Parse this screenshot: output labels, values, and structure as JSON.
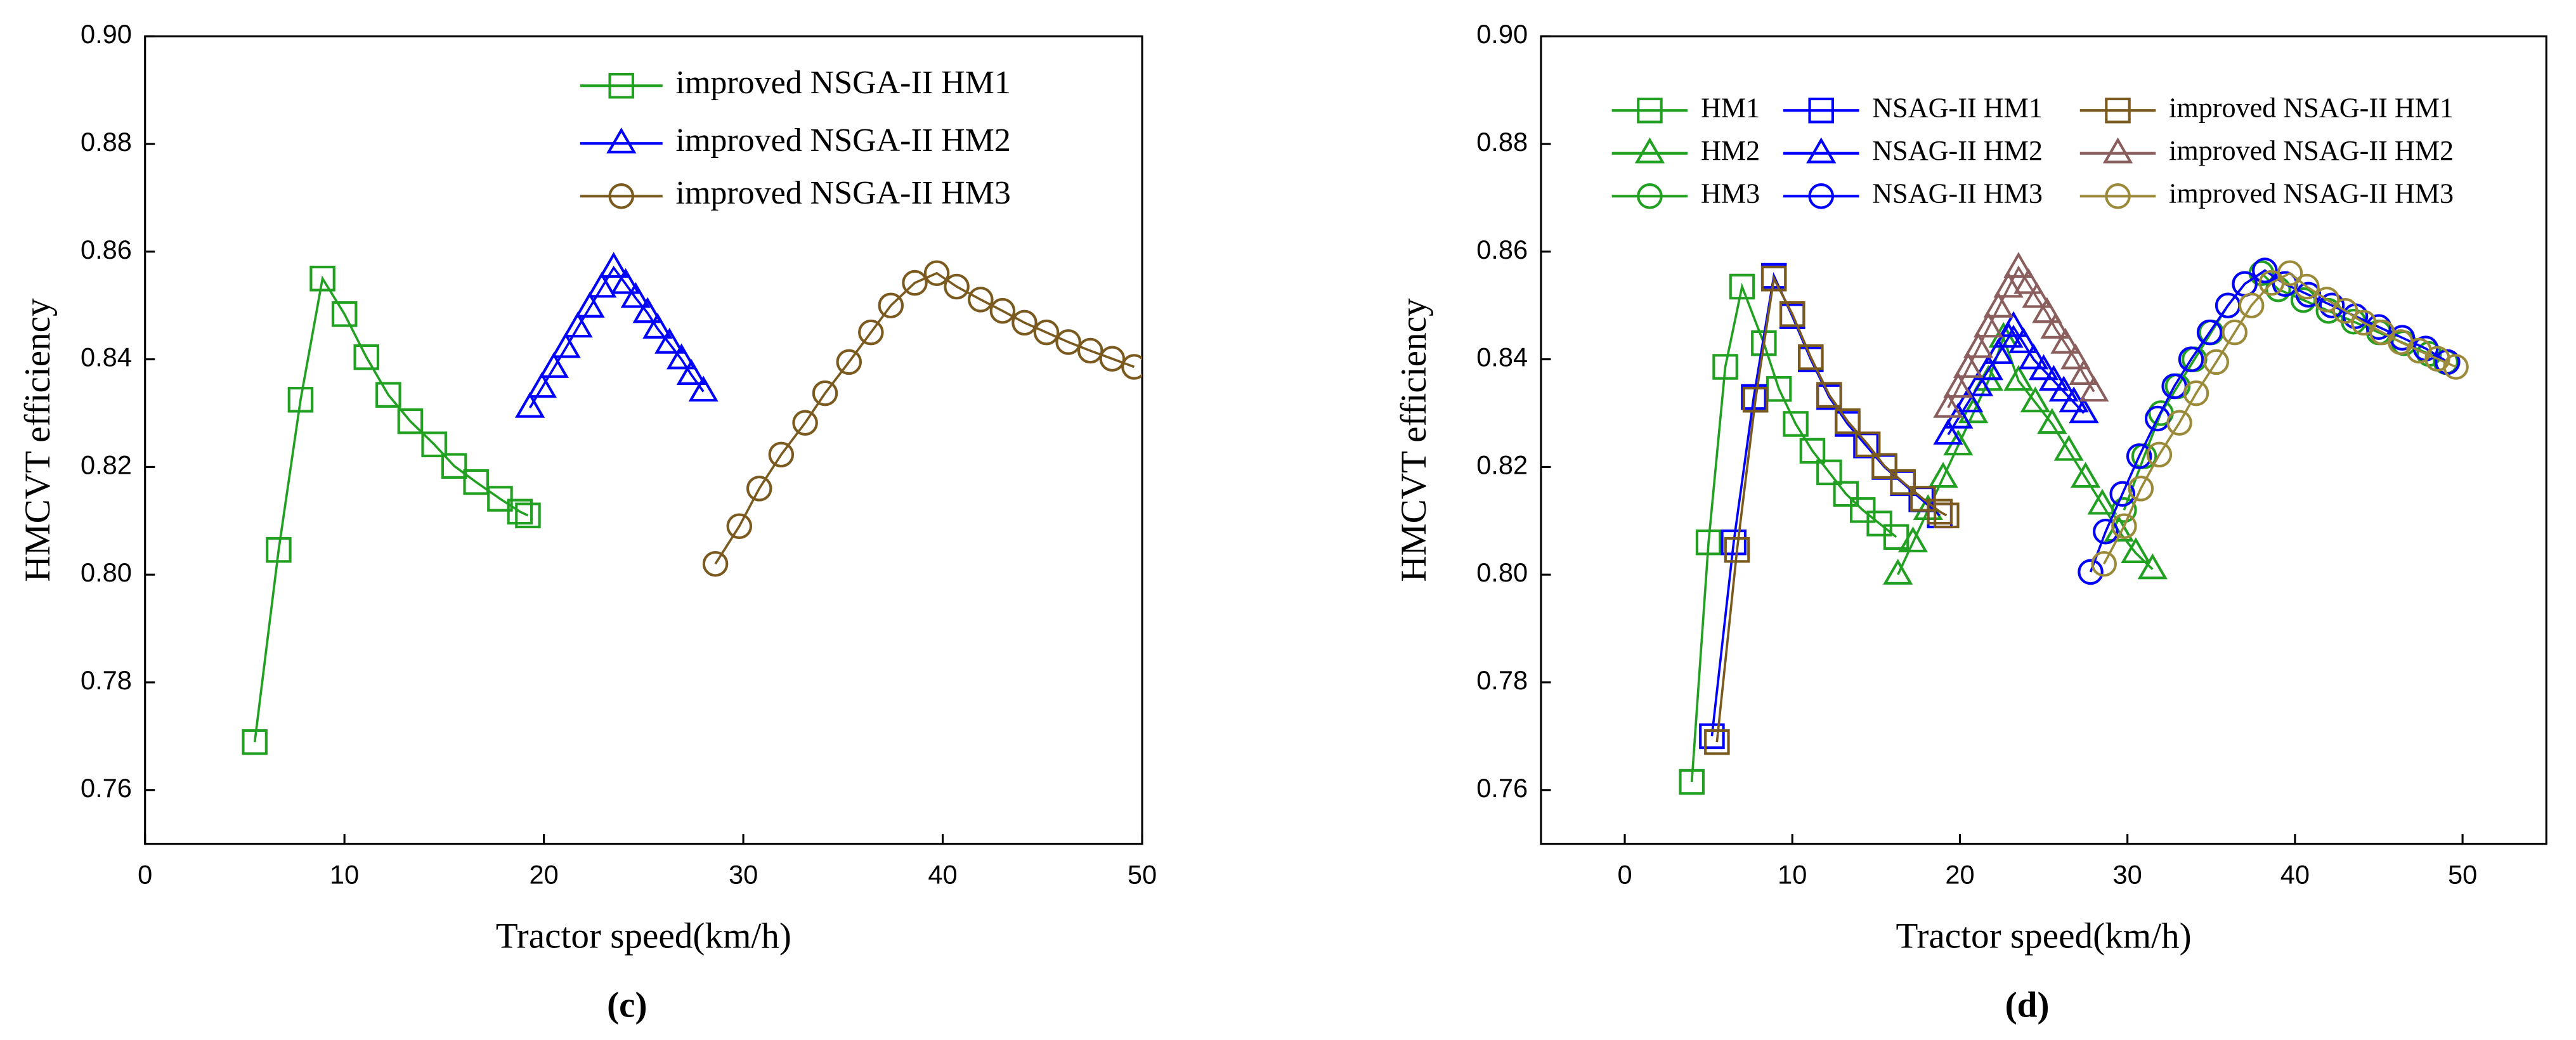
{
  "chart_data": [
    {
      "type": "line",
      "panel_label": "(c)",
      "xlabel": "Tractor speed(km/h)",
      "ylabel": "HMCVT efficiency",
      "xlim": [
        0,
        50
      ],
      "xticks": [
        0,
        10,
        20,
        30,
        40,
        50
      ],
      "ylim": [
        0.75,
        0.9
      ],
      "yticks": [
        {
          "value": 0.76,
          "label": "0.76"
        },
        {
          "value": 0.78,
          "label": "0.78"
        },
        {
          "value": 0.8,
          "label": "0.80"
        },
        {
          "value": 0.82,
          "label": "0.82"
        },
        {
          "value": 0.84,
          "label": "0.84"
        },
        {
          "value": 0.86,
          "label": "0.86"
        },
        {
          "value": 0.88,
          "label": "0.88"
        },
        {
          "value": 0.9,
          "label": "0.90"
        }
      ],
      "series": [
        {
          "name": "improved NSGA-II HM1",
          "color": "#22a022",
          "marker": "square",
          "x": [
            5.5,
            6.7,
            7.8,
            8.9,
            10.0,
            11.1,
            12.2,
            13.3,
            14.5,
            15.5,
            16.6,
            17.8,
            18.8,
            19.2
          ],
          "values": [
            0.7689,
            0.8046,
            0.8325,
            0.855,
            0.8484,
            0.8404,
            0.8334,
            0.8285,
            0.8242,
            0.8202,
            0.8172,
            0.8141,
            0.8117,
            0.811
          ]
        },
        {
          "name": "improved NSGA-II HM2",
          "color": "#0000ff",
          "marker": "triangle",
          "x": [
            19.3,
            19.9,
            20.5,
            21.1,
            21.7,
            22.3,
            22.9,
            23.5,
            24.1,
            24.6,
            25.2,
            25.7,
            26.3,
            26.9,
            27.4,
            28.0
          ],
          "values": [
            0.831,
            0.8347,
            0.8384,
            0.8421,
            0.8459,
            0.8496,
            0.8533,
            0.857,
            0.854,
            0.8514,
            0.8486,
            0.8457,
            0.8429,
            0.84,
            0.8371,
            0.834
          ]
        },
        {
          "name": "improved NSGA-II HM3",
          "color": "#7a5a1e",
          "marker": "circle",
          "x": [
            28.6,
            29.8,
            30.8,
            31.9,
            33.1,
            34.1,
            35.3,
            36.4,
            37.4,
            38.6,
            39.7,
            40.7,
            41.9,
            43.0,
            44.1,
            45.2,
            46.3,
            47.4,
            48.5,
            49.6
          ],
          "values": [
            0.802,
            0.809,
            0.816,
            0.8223,
            0.8282,
            0.8337,
            0.8395,
            0.845,
            0.85,
            0.8542,
            0.856,
            0.8535,
            0.8511,
            0.849,
            0.8468,
            0.845,
            0.8432,
            0.8416,
            0.8401,
            0.8386
          ]
        }
      ]
    },
    {
      "type": "line",
      "panel_label": "(d)",
      "xlabel": "Tractor speed(km/h)",
      "ylabel": "HMCVT efficiency",
      "xlim": [
        -5,
        55
      ],
      "xticks": [
        0,
        10,
        20,
        30,
        40,
        50
      ],
      "ylim": [
        0.75,
        0.9
      ],
      "yticks": [
        {
          "value": 0.76,
          "label": "0.76"
        },
        {
          "value": 0.78,
          "label": "0.78"
        },
        {
          "value": 0.8,
          "label": "0.80"
        },
        {
          "value": 0.82,
          "label": "0.82"
        },
        {
          "value": 0.84,
          "label": "0.84"
        },
        {
          "value": 0.86,
          "label": "0.86"
        },
        {
          "value": 0.88,
          "label": "0.88"
        },
        {
          "value": 0.9,
          "label": "0.90"
        }
      ],
      "series": [
        {
          "name": "HM1",
          "color": "#22a022",
          "marker": "square",
          "x": [
            4.0,
            5.0,
            6.0,
            7.0,
            8.3,
            9.2,
            10.2,
            11.2,
            12.2,
            13.2,
            14.2,
            15.2,
            16.2
          ],
          "values": [
            0.7615,
            0.806,
            0.8386,
            0.8535,
            0.843,
            0.8345,
            0.828,
            0.823,
            0.819,
            0.815,
            0.812,
            0.8095,
            0.807
          ]
        },
        {
          "name": "HM2",
          "color": "#22a022",
          "marker": "triangle",
          "x": [
            16.3,
            17.2,
            18.1,
            19.0,
            19.9,
            20.8,
            21.7,
            22.6,
            23.5,
            24.5,
            25.5,
            26.5,
            27.5,
            28.5,
            29.5,
            30.5,
            31.5
          ],
          "values": [
            0.8,
            0.806,
            0.812,
            0.818,
            0.824,
            0.83,
            0.836,
            0.844,
            0.836,
            0.832,
            0.828,
            0.823,
            0.818,
            0.813,
            0.808,
            0.804,
            0.801
          ]
        },
        {
          "name": "HM3",
          "color": "#22a022",
          "marker": "circle",
          "x": [
            29.8,
            31.0,
            32.0,
            33.0,
            34.0,
            35.0,
            36.0,
            37.0,
            38.0,
            39.0,
            40.5,
            42.0,
            43.5,
            45.0,
            46.5,
            48.0,
            49.0
          ],
          "values": [
            0.812,
            0.822,
            0.83,
            0.835,
            0.84,
            0.845,
            0.85,
            0.854,
            0.856,
            0.853,
            0.851,
            0.849,
            0.847,
            0.845,
            0.843,
            0.841,
            0.8395
          ]
        },
        {
          "name": "NSAG-II HM1",
          "color": "#0000ff",
          "marker": "square",
          "x": [
            5.2,
            6.5,
            7.7,
            8.9,
            10.0,
            11.1,
            12.2,
            13.3,
            14.4,
            15.5,
            16.6,
            17.7,
            18.8
          ],
          "values": [
            0.77,
            0.806,
            0.833,
            0.8555,
            0.848,
            0.84,
            0.833,
            0.828,
            0.824,
            0.82,
            0.817,
            0.814,
            0.811
          ]
        },
        {
          "name": "NSAG-II HM2",
          "color": "#0000ff",
          "marker": "triangle",
          "x": [
            19.3,
            19.9,
            20.5,
            21.1,
            21.7,
            22.3,
            22.9,
            23.2,
            23.8,
            24.4,
            25.0,
            25.6,
            26.2,
            26.8,
            27.4
          ],
          "values": [
            0.826,
            0.829,
            0.832,
            0.835,
            0.838,
            0.841,
            0.844,
            0.846,
            0.843,
            0.84,
            0.838,
            0.836,
            0.834,
            0.832,
            0.83
          ]
        },
        {
          "name": "NSAG-II HM3",
          "color": "#0000ff",
          "marker": "circle",
          "x": [
            27.8,
            28.7,
            29.7,
            30.7,
            31.8,
            32.8,
            33.8,
            34.9,
            36.0,
            37.0,
            38.2,
            39.4,
            40.8,
            42.2,
            43.6,
            45.0,
            46.4,
            47.8,
            49.1
          ],
          "values": [
            0.8005,
            0.808,
            0.815,
            0.822,
            0.829,
            0.835,
            0.84,
            0.845,
            0.85,
            0.854,
            0.8565,
            0.854,
            0.852,
            0.85,
            0.848,
            0.846,
            0.844,
            0.842,
            0.8395
          ]
        },
        {
          "name": "improved NSAG-II HM1",
          "color": "#7a5a1e",
          "marker": "square",
          "x": [
            5.5,
            6.7,
            7.8,
            8.9,
            10.0,
            11.1,
            12.2,
            13.3,
            14.5,
            15.5,
            16.6,
            17.8,
            18.8,
            19.2
          ],
          "values": [
            0.7689,
            0.8046,
            0.8325,
            0.855,
            0.8484,
            0.8404,
            0.8334,
            0.8285,
            0.8242,
            0.8202,
            0.8172,
            0.8141,
            0.8117,
            0.811
          ]
        },
        {
          "name": "improved NSAG-II HM2",
          "color": "#8b5e5e",
          "marker": "triangle",
          "x": [
            19.3,
            19.9,
            20.5,
            21.1,
            21.7,
            22.3,
            22.9,
            23.5,
            24.1,
            24.6,
            25.2,
            25.7,
            26.3,
            26.9,
            27.4,
            28.0
          ],
          "values": [
            0.831,
            0.8347,
            0.8384,
            0.8421,
            0.8459,
            0.8496,
            0.8533,
            0.857,
            0.854,
            0.8514,
            0.8486,
            0.8457,
            0.8429,
            0.84,
            0.8371,
            0.834
          ]
        },
        {
          "name": "improved NSAG-II HM3",
          "color": "#9a8a3a",
          "marker": "circle",
          "x": [
            28.6,
            29.8,
            30.8,
            31.9,
            33.1,
            34.1,
            35.3,
            36.4,
            37.4,
            38.6,
            39.7,
            40.7,
            41.9,
            43.0,
            44.1,
            45.2,
            46.3,
            47.4,
            48.5,
            49.6
          ],
          "values": [
            0.802,
            0.809,
            0.816,
            0.8223,
            0.8282,
            0.8337,
            0.8395,
            0.845,
            0.85,
            0.8542,
            0.856,
            0.8535,
            0.8511,
            0.849,
            0.8468,
            0.845,
            0.8432,
            0.8416,
            0.8401,
            0.8386
          ]
        }
      ]
    }
  ]
}
